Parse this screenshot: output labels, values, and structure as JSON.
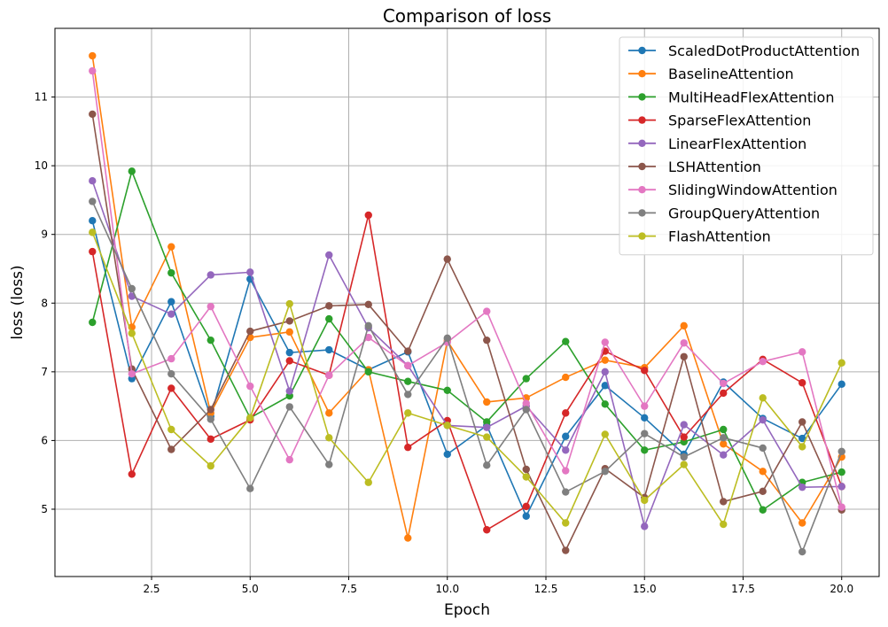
{
  "chart_data": {
    "type": "line",
    "title": "Comparison of loss",
    "xlabel": "Epoch",
    "ylabel": "loss (loss)",
    "xlim": [
      0.05,
      20.95
    ],
    "ylim": [
      4.02,
      12.0
    ],
    "xticks": [
      2.5,
      5.0,
      7.5,
      10.0,
      12.5,
      15.0,
      17.5,
      20.0
    ],
    "xtick_labels": [
      "2.5",
      "5.0",
      "7.5",
      "10.0",
      "12.5",
      "15.0",
      "17.5",
      "20.0"
    ],
    "yticks": [
      5,
      6,
      7,
      8,
      9,
      10,
      11
    ],
    "ytick_labels": [
      "5",
      "6",
      "7",
      "8",
      "9",
      "10",
      "11"
    ],
    "grid": true,
    "legend_position": "top-right",
    "x": [
      1,
      2,
      3,
      4,
      5,
      6,
      7,
      8,
      9,
      10,
      11,
      12,
      13,
      14,
      15,
      16,
      17,
      18,
      19,
      20
    ],
    "series": [
      {
        "name": "ScaledDotProductAttention",
        "color": "#1f77b4",
        "values": [
          9.2,
          6.9,
          8.02,
          6.35,
          8.35,
          7.28,
          7.32,
          7.03,
          7.29,
          5.8,
          6.22,
          4.9,
          6.06,
          6.8,
          6.33,
          5.8,
          6.85,
          6.32,
          6.03,
          6.82
        ]
      },
      {
        "name": "BaselineAttention",
        "color": "#ff7f0e",
        "values": [
          11.6,
          7.65,
          8.82,
          6.4,
          7.5,
          7.58,
          6.4,
          7.03,
          4.58,
          7.45,
          6.56,
          6.62,
          6.92,
          7.17,
          7.06,
          7.67,
          5.95,
          5.55,
          4.8,
          5.76
        ]
      },
      {
        "name": "MultiHeadFlexAttention",
        "color": "#2ca02c",
        "values": [
          7.72,
          9.92,
          8.44,
          7.46,
          6.33,
          6.65,
          7.77,
          7.0,
          6.86,
          6.73,
          6.27,
          6.9,
          7.44,
          6.53,
          5.86,
          5.98,
          6.16,
          4.99,
          5.39,
          5.54
        ]
      },
      {
        "name": "SparseFlexAttention",
        "color": "#d62728",
        "values": [
          8.75,
          5.51,
          6.76,
          6.02,
          6.3,
          7.16,
          6.95,
          9.28,
          5.9,
          6.29,
          4.7,
          5.04,
          6.4,
          7.3,
          7.02,
          6.05,
          6.69,
          7.18,
          6.84,
          5.33
        ]
      },
      {
        "name": "LinearFlexAttention",
        "color": "#9467bd",
        "values": [
          9.78,
          8.1,
          7.84,
          8.41,
          8.45,
          6.72,
          8.7,
          7.64,
          7.09,
          6.22,
          6.19,
          6.5,
          5.86,
          7.0,
          4.75,
          6.23,
          5.79,
          6.3,
          5.32,
          5.33
        ]
      },
      {
        "name": "LSHAttention",
        "color": "#8c564b",
        "values": [
          10.75,
          7.04,
          5.87,
          6.45,
          7.59,
          7.74,
          7.96,
          7.98,
          7.3,
          8.64,
          7.46,
          5.58,
          4.4,
          5.59,
          5.17,
          7.22,
          5.11,
          5.26,
          6.27,
          4.99
        ]
      },
      {
        "name": "SlidingWindowAttention",
        "color": "#e377c2",
        "values": [
          11.38,
          6.97,
          7.19,
          7.95,
          6.79,
          5.72,
          6.95,
          7.5,
          7.09,
          7.43,
          7.88,
          6.54,
          5.56,
          7.43,
          6.5,
          7.42,
          6.83,
          7.15,
          7.29,
          5.03
        ]
      },
      {
        "name": "GroupQueryAttention",
        "color": "#7f7f7f",
        "values": [
          9.48,
          8.21,
          6.97,
          6.31,
          5.3,
          6.49,
          5.65,
          7.67,
          6.67,
          7.49,
          5.64,
          6.45,
          5.25,
          5.55,
          6.1,
          5.76,
          6.04,
          5.89,
          4.38,
          5.84
        ]
      },
      {
        "name": "FlashAttention",
        "color": "#bcbd22",
        "values": [
          9.03,
          7.56,
          6.16,
          5.63,
          6.33,
          7.99,
          6.04,
          5.39,
          6.4,
          6.22,
          6.05,
          5.47,
          4.8,
          6.09,
          5.13,
          5.65,
          4.78,
          6.62,
          5.91,
          7.13
        ]
      }
    ]
  }
}
